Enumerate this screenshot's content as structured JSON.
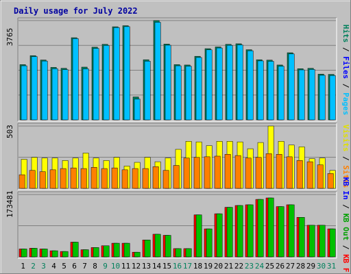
{
  "chart_data": [
    {
      "type": "bar",
      "title": "Daily usage for July 2022",
      "y_max_label": "3765",
      "y_max": 3765,
      "categories": [
        "1",
        "2",
        "3",
        "4",
        "5",
        "6",
        "7",
        "8",
        "9",
        "10",
        "11",
        "12",
        "13",
        "14",
        "15",
        "16",
        "17",
        "18",
        "19",
        "20",
        "21",
        "22",
        "23",
        "24",
        "25",
        "26",
        "27",
        "28",
        "29",
        "30",
        "31"
      ],
      "weekend_days": [
        "2",
        "3",
        "9",
        "10",
        "16",
        "17",
        "23",
        "24",
        "30",
        "31"
      ],
      "legend": [
        "Hits",
        "Files",
        "Pages"
      ],
      "series": [
        {
          "name": "Hits",
          "color": "#00805c",
          "values": [
            2095,
            2435,
            2270,
            1990,
            1955,
            3115,
            2000,
            2755,
            2865,
            3530,
            3570,
            870,
            2280,
            3765,
            2875,
            2095,
            2080,
            2410,
            2700,
            2765,
            2865,
            2885,
            2660,
            2280,
            2265,
            2080,
            2545,
            1940,
            1955,
            1735,
            1725
          ]
        },
        {
          "name": "Files",
          "color": "#0000ff",
          "values": [
            2050,
            2400,
            2230,
            1940,
            1905,
            3080,
            1935,
            2710,
            2820,
            3500,
            3535,
            790,
            2225,
            3700,
            2830,
            2050,
            2035,
            2365,
            2655,
            2725,
            2825,
            2840,
            2620,
            2235,
            2220,
            2035,
            2500,
            1895,
            1910,
            1690,
            1680
          ]
        },
        {
          "name": "Pages",
          "color": "#00c0ff",
          "values": [
            2050,
            2400,
            2230,
            1940,
            1905,
            3080,
            1935,
            2710,
            2820,
            3500,
            3535,
            790,
            2225,
            3700,
            2830,
            2050,
            2035,
            2365,
            2655,
            2725,
            2825,
            2840,
            2620,
            2235,
            2220,
            2035,
            2500,
            1895,
            1910,
            1690,
            1680
          ]
        }
      ]
    },
    {
      "type": "bar",
      "y_max_label": "503",
      "y_max": 503,
      "categories": [
        "1",
        "2",
        "3",
        "4",
        "5",
        "6",
        "7",
        "8",
        "9",
        "10",
        "11",
        "12",
        "13",
        "14",
        "15",
        "16",
        "17",
        "18",
        "19",
        "20",
        "21",
        "22",
        "23",
        "24",
        "25",
        "26",
        "27",
        "28",
        "29",
        "30",
        "31"
      ],
      "legend": [
        "Visits",
        "Sites"
      ],
      "series": [
        {
          "name": "Visits",
          "color": "#ffff00",
          "values": [
            235,
            250,
            245,
            245,
            225,
            245,
            285,
            245,
            225,
            250,
            180,
            210,
            250,
            215,
            245,
            315,
            380,
            375,
            345,
            380,
            380,
            375,
            320,
            370,
            503,
            380,
            350,
            335,
            240,
            245,
            145
          ]
        },
        {
          "name": "Sites",
          "color": "#ff8000",
          "values": [
            110,
            145,
            135,
            150,
            160,
            165,
            160,
            170,
            160,
            165,
            150,
            160,
            160,
            175,
            145,
            185,
            245,
            250,
            255,
            260,
            275,
            265,
            245,
            250,
            280,
            275,
            255,
            225,
            215,
            190,
            120
          ]
        }
      ]
    },
    {
      "type": "bar",
      "y_max_label": "173481",
      "y_max": 173481,
      "categories": [
        "1",
        "2",
        "3",
        "4",
        "5",
        "6",
        "7",
        "8",
        "9",
        "10",
        "11",
        "12",
        "13",
        "14",
        "15",
        "16",
        "17",
        "18",
        "19",
        "20",
        "21",
        "22",
        "23",
        "24",
        "25",
        "26",
        "27",
        "28",
        "29",
        "30",
        "31"
      ],
      "legend": [
        "KB In",
        "KB Out",
        "KB F"
      ],
      "series": [
        {
          "name": "KB F",
          "color": "#ff0000",
          "values": [
            22000,
            24000,
            22000,
            17000,
            15000,
            41000,
            20000,
            26000,
            31000,
            38000,
            38000,
            13000,
            47000,
            63000,
            60000,
            23000,
            23000,
            117000,
            78000,
            120000,
            138000,
            143000,
            145000,
            160000,
            164000,
            140000,
            145000,
            110000,
            88000,
            88000,
            78000
          ]
        },
        {
          "name": "KB Out",
          "color": "#00c000",
          "values": [
            22000,
            24000,
            22000,
            17000,
            15000,
            41000,
            20000,
            26000,
            31000,
            38000,
            38000,
            13000,
            47000,
            63000,
            60000,
            23000,
            23000,
            117000,
            78000,
            120000,
            138000,
            143000,
            145000,
            160000,
            164000,
            140000,
            145000,
            110000,
            88000,
            88000,
            78000
          ]
        },
        {
          "name": "KB In",
          "color": "#0000ff",
          "values": [
            0,
            0,
            0,
            0,
            0,
            0,
            0,
            0,
            0,
            0,
            0,
            0,
            0,
            0,
            0,
            0,
            0,
            0,
            0,
            0,
            0,
            0,
            0,
            0,
            0,
            0,
            0,
            0,
            0,
            0,
            0
          ]
        }
      ]
    }
  ]
}
